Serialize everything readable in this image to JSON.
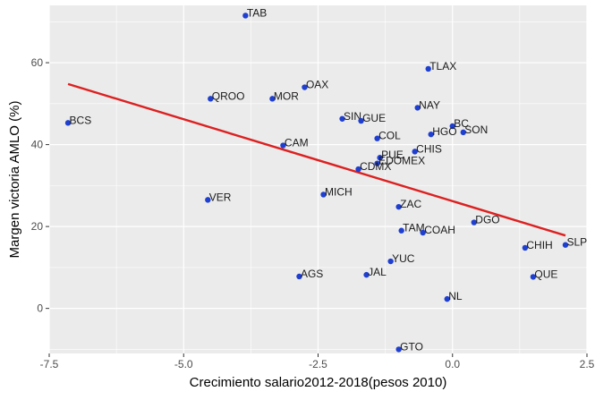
{
  "chart_data": {
    "type": "scatter",
    "title": "",
    "xlabel": "Crecimiento salario2012-2018(pesos 2010)",
    "ylabel": "Margen victoria AMLO (%)",
    "xlim": [
      -7.5,
      2.5
    ],
    "ylim": [
      -11,
      74
    ],
    "xticks": [
      -7.5,
      -5.0,
      -2.5,
      0.0,
      2.5
    ],
    "xtick_labels": [
      "-7.5",
      "-5.0",
      "-2.5",
      "0.0",
      "2.5"
    ],
    "yticks": [
      0,
      20,
      40,
      60
    ],
    "ytick_labels": [
      "0",
      "20",
      "40",
      "60"
    ],
    "grid": true,
    "points": [
      {
        "label": "TAB",
        "x": -3.85,
        "y": 71.5
      },
      {
        "label": "TLAX",
        "x": -0.45,
        "y": 58.5
      },
      {
        "label": "OAX",
        "x": -2.75,
        "y": 54.0
      },
      {
        "label": "QROO",
        "x": -4.5,
        "y": 51.2
      },
      {
        "label": "MOR",
        "x": -3.35,
        "y": 51.2
      },
      {
        "label": "NAY",
        "x": -0.65,
        "y": 49.0
      },
      {
        "label": "BCS",
        "x": -7.15,
        "y": 45.3
      },
      {
        "label": "SIN",
        "x": -2.05,
        "y": 46.3
      },
      {
        "label": "GUE",
        "x": -1.7,
        "y": 45.8
      },
      {
        "label": "BC",
        "x": 0.0,
        "y": 44.5
      },
      {
        "label": "SON",
        "x": 0.2,
        "y": 43.0
      },
      {
        "label": "HGO",
        "x": -0.4,
        "y": 42.5
      },
      {
        "label": "COL",
        "x": -1.4,
        "y": 41.5
      },
      {
        "label": "CAM",
        "x": -3.15,
        "y": 39.8
      },
      {
        "label": "CHIS",
        "x": -0.7,
        "y": 38.3
      },
      {
        "label": "PUE",
        "x": -1.35,
        "y": 36.8
      },
      {
        "label": "EDOMEX",
        "x": -1.4,
        "y": 35.4
      },
      {
        "label": "CDMX",
        "x": -1.75,
        "y": 34.0
      },
      {
        "label": "MICH",
        "x": -2.4,
        "y": 27.8
      },
      {
        "label": "VER",
        "x": -4.55,
        "y": 26.5
      },
      {
        "label": "ZAC",
        "x": -1.0,
        "y": 24.8
      },
      {
        "label": "DGO",
        "x": 0.4,
        "y": 21.0
      },
      {
        "label": "TAM",
        "x": -0.95,
        "y": 19.0
      },
      {
        "label": "COAH",
        "x": -0.55,
        "y": 18.5
      },
      {
        "label": "SLP",
        "x": 2.1,
        "y": 15.5
      },
      {
        "label": "CHIH",
        "x": 1.35,
        "y": 14.8
      },
      {
        "label": "YUC",
        "x": -1.15,
        "y": 11.5
      },
      {
        "label": "AGS",
        "x": -2.85,
        "y": 7.8
      },
      {
        "label": "JAL",
        "x": -1.6,
        "y": 8.2
      },
      {
        "label": "QUE",
        "x": 1.5,
        "y": 7.7
      },
      {
        "label": "NL",
        "x": -0.1,
        "y": 2.3
      },
      {
        "label": "GTO",
        "x": -1.0,
        "y": -10.0
      }
    ],
    "trend_line": {
      "x": [
        -7.15,
        2.1
      ],
      "y": [
        54.8,
        17.8
      ]
    },
    "colors": {
      "panel": "#ebebeb",
      "grid": "#ffffff",
      "point": "#1f3fd0",
      "trend": "#dd2020",
      "text": "#1a1a1a",
      "tick_text": "#4d4d4d"
    }
  }
}
